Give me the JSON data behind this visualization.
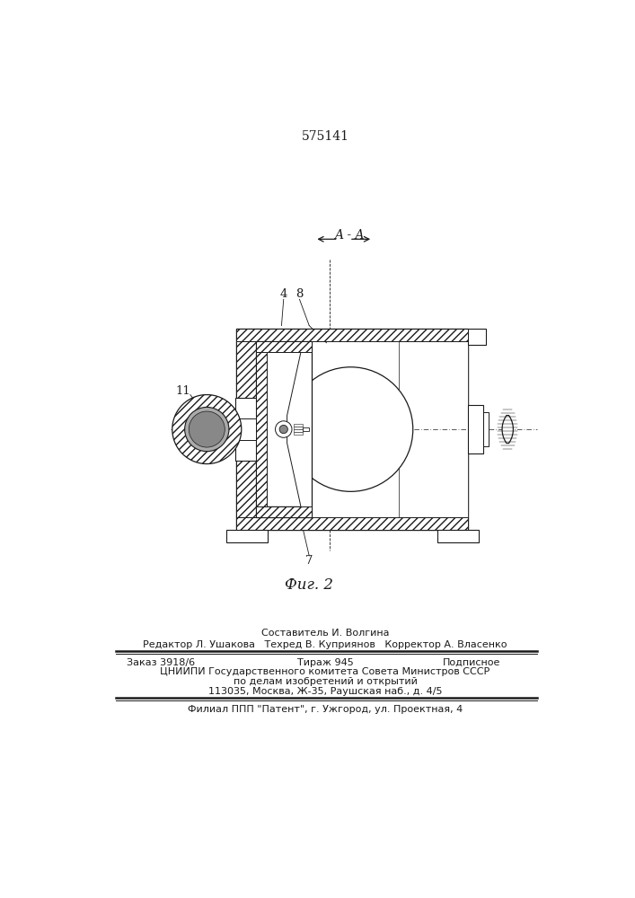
{
  "patent_number": "575141",
  "fig_label": "Фиг. 2",
  "section_label": "A - A",
  "line_color": "#1a1a1a",
  "footer_lines": [
    "Составитель И. Волгина",
    "Редактор Л. Ушакова   Техред В. Куприянов   Корректор А. Власенко",
    "ЦНИИПИ Государственного комитета Совета Министров СССР",
    "по делам изобретений и открытий",
    "113035, Москва, Ж-35, Раушская наб., д. 4/5",
    "Филиал ППП \"Патент\", г. Ужгород, ул. Проектная, 4"
  ]
}
